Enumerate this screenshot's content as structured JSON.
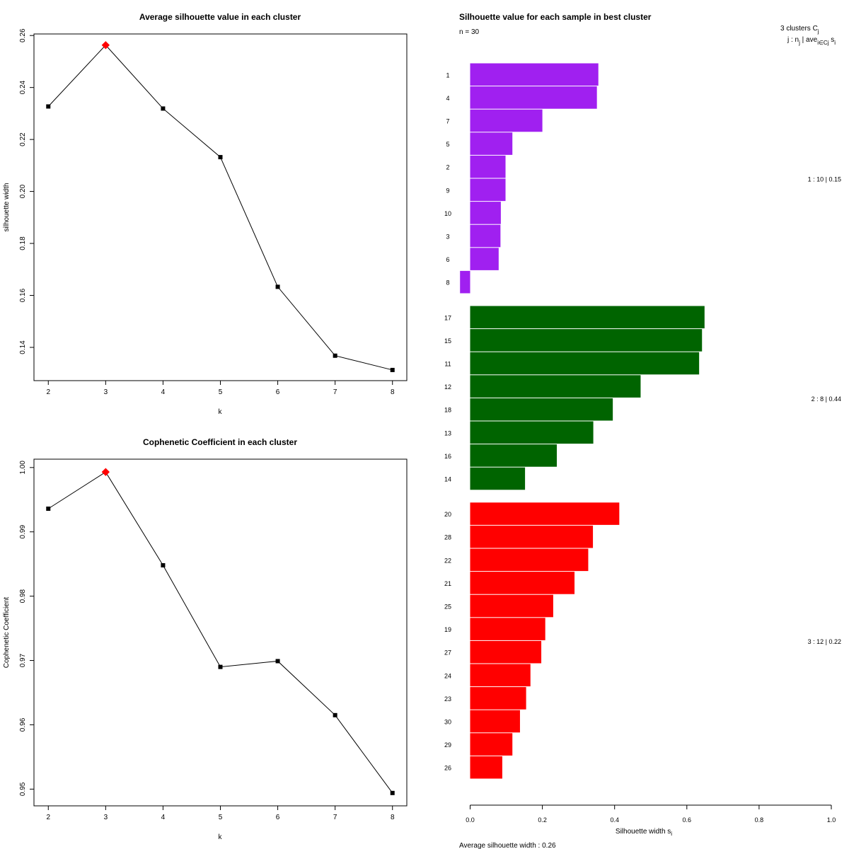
{
  "chart_data": [
    {
      "type": "line",
      "title": "Average silhouette value in each cluster",
      "xlabel": "k",
      "ylabel": "silhouette width",
      "x": [
        2,
        3,
        4,
        5,
        6,
        7,
        8
      ],
      "values": [
        0.2327,
        0.2563,
        0.2319,
        0.2132,
        0.1633,
        0.1368,
        0.1313
      ],
      "best_index": 1,
      "xlim": [
        1.75,
        8.25
      ],
      "ylim": [
        0.1272,
        0.2606
      ],
      "xticks": [
        "2",
        "3",
        "4",
        "5",
        "6",
        "7",
        "8"
      ],
      "yticks": [
        "0.14",
        "0.16",
        "0.18",
        "0.20",
        "0.22",
        "0.24",
        "0.26"
      ],
      "colors": {
        "points": "#000000",
        "best": "#ff0000",
        "line": "#000000"
      }
    },
    {
      "type": "line",
      "title": "Cophenetic Coefficient in each cluster",
      "xlabel": "k",
      "ylabel": "Cophenetic Coefficient",
      "x": [
        2,
        3,
        4,
        5,
        6,
        7,
        8
      ],
      "values": [
        0.9936,
        0.9993,
        0.9848,
        0.969,
        0.9699,
        0.9615,
        0.9494
      ],
      "best_index": 1,
      "xlim": [
        1.75,
        8.25
      ],
      "ylim": [
        0.9474,
        1.0013
      ],
      "xticks": [
        "2",
        "3",
        "4",
        "5",
        "6",
        "7",
        "8"
      ],
      "yticks": [
        "0.95",
        "0.96",
        "0.97",
        "0.98",
        "0.99",
        "1.00"
      ],
      "colors": {
        "points": "#000000",
        "best": "#ff0000",
        "line": "#000000"
      }
    },
    {
      "type": "bar",
      "orientation": "horizontal",
      "title": "Silhouette value for each sample in best cluster",
      "n_label": "n = 30",
      "header": {
        "clusters": "3  clusters  C",
        "clusters_sub": "j",
        "cols_j": "j :  n",
        "cols_j_sub": "j",
        "cols_ave": " | ave",
        "cols_ave_sub": "i∈Cj",
        "cols_s": "  s",
        "cols_s_sub": "i"
      },
      "xlabel": "Silhouette width s",
      "xlabel_sub": "i",
      "xlim": [
        0,
        1
      ],
      "xticks": [
        "0.0",
        "0.2",
        "0.4",
        "0.6",
        "0.8",
        "1.0"
      ],
      "footer": "Average silhouette width :  0.26",
      "clusters": [
        {
          "color": "#a020f0",
          "summary": "1 :  10  |  0.15",
          "samples": [
            "1",
            "4",
            "7",
            "5",
            "2",
            "9",
            "10",
            "3",
            "6",
            "8"
          ],
          "values": [
            0.355,
            0.351,
            0.2,
            0.117,
            0.098,
            0.098,
            0.085,
            0.084,
            0.079,
            -0.028
          ]
        },
        {
          "color": "#006400",
          "summary": "2 :  8  |  0.44",
          "samples": [
            "17",
            "15",
            "11",
            "12",
            "18",
            "13",
            "16",
            "14"
          ],
          "values": [
            0.649,
            0.642,
            0.634,
            0.472,
            0.395,
            0.341,
            0.24,
            0.152
          ]
        },
        {
          "color": "#ff0000",
          "summary": "3 :  12  |  0.22",
          "samples": [
            "20",
            "28",
            "22",
            "21",
            "25",
            "19",
            "27",
            "24",
            "23",
            "30",
            "29",
            "26"
          ],
          "values": [
            0.413,
            0.34,
            0.327,
            0.289,
            0.23,
            0.208,
            0.197,
            0.167,
            0.155,
            0.138,
            0.117,
            0.089
          ]
        }
      ]
    }
  ]
}
